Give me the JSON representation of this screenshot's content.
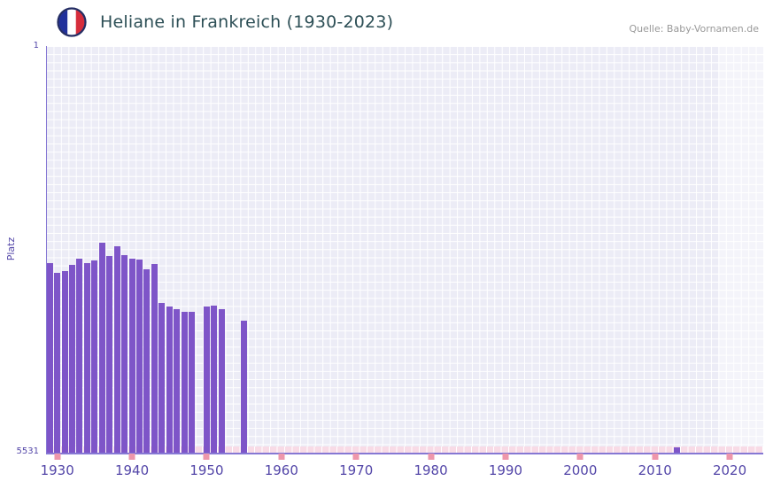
{
  "header": {
    "title": "Heliane in Frankreich (1930-2023)",
    "source": "Quelle: Baby-Vornamen.de"
  },
  "axes": {
    "y_label": "Platz",
    "y_top_label": "1",
    "y_bottom_label": "5531",
    "x_ticks": [
      1930,
      1940,
      1950,
      1960,
      1970,
      1980,
      1990,
      2000,
      2010,
      2020
    ]
  },
  "colors": {
    "bar": "#7e55c8",
    "axis_line": "#8678d4",
    "tick_text": "#5346a8",
    "plot_background": "#ececf6",
    "grid_line": "#ffffff",
    "no_data_strip": "#f8dbe6",
    "decade_tick": "#ee96ab",
    "title_text": "#2d4f56",
    "source_text": "#999999",
    "flag_blue": "#21309b",
    "flag_white": "#ffffff",
    "flag_red": "#d62d3c",
    "flag_ring": "#232c63"
  },
  "chart_data": {
    "type": "bar",
    "title": "Heliane in Frankreich (1930-2023)",
    "xlabel": "",
    "ylabel": "Platz",
    "y_axis": {
      "min": 1,
      "max": 5531,
      "inverted": true
    },
    "x_range": [
      1928.5,
      2024.5
    ],
    "highlight_band_from": 2018.5,
    "legend": "none",
    "grid": true,
    "points": [
      {
        "year": 1929,
        "rank": 2950
      },
      {
        "year": 1930,
        "rank": 3090
      },
      {
        "year": 1931,
        "rank": 3060
      },
      {
        "year": 1932,
        "rank": 2980
      },
      {
        "year": 1933,
        "rank": 2890
      },
      {
        "year": 1934,
        "rank": 2950
      },
      {
        "year": 1935,
        "rank": 2910
      },
      {
        "year": 1936,
        "rank": 2670
      },
      {
        "year": 1937,
        "rank": 2860
      },
      {
        "year": 1938,
        "rank": 2720
      },
      {
        "year": 1939,
        "rank": 2840
      },
      {
        "year": 1940,
        "rank": 2890
      },
      {
        "year": 1941,
        "rank": 2900
      },
      {
        "year": 1942,
        "rank": 3040
      },
      {
        "year": 1943,
        "rank": 2960
      },
      {
        "year": 1944,
        "rank": 3490
      },
      {
        "year": 1945,
        "rank": 3540
      },
      {
        "year": 1946,
        "rank": 3580
      },
      {
        "year": 1947,
        "rank": 3610
      },
      {
        "year": 1948,
        "rank": 3620
      },
      {
        "year": 1950,
        "rank": 3540
      },
      {
        "year": 1951,
        "rank": 3530
      },
      {
        "year": 1952,
        "rank": 3580
      },
      {
        "year": 1955,
        "rank": 3730
      },
      {
        "year": 2013,
        "rank": 5460
      }
    ]
  }
}
